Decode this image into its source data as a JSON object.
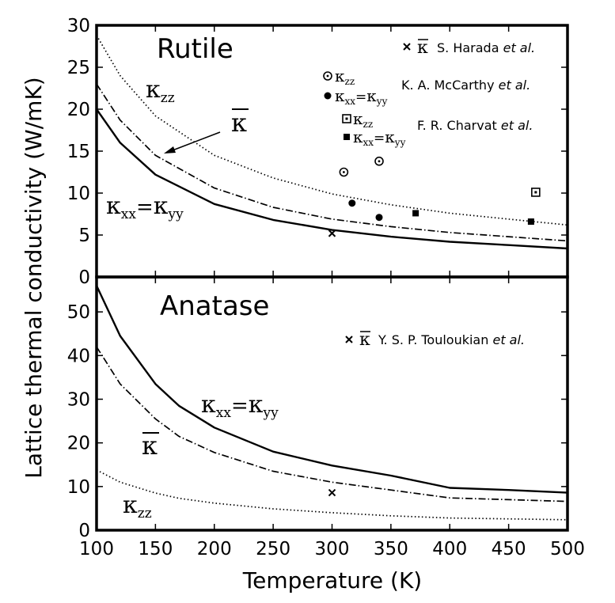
{
  "figure": {
    "xlabel": "Temperature (K)",
    "ylabel": "Lattice thermal conductivity (W/mK)"
  },
  "chart_data": [
    {
      "type": "line",
      "title": "Rutile",
      "xlim": [
        100,
        500
      ],
      "ylim": [
        0,
        30
      ],
      "xticks": [
        100,
        150,
        200,
        250,
        300,
        350,
        400,
        450,
        500
      ],
      "yticks": [
        0,
        5,
        10,
        15,
        20,
        25,
        30
      ],
      "grid": false,
      "series": [
        {
          "id": "kxx",
          "style": "solid",
          "x": [
            100,
            120,
            150,
            200,
            250,
            300,
            350,
            400,
            450,
            500
          ],
          "y": [
            20.0,
            16.0,
            12.2,
            8.7,
            6.8,
            5.6,
            4.8,
            4.2,
            3.8,
            3.4
          ]
        },
        {
          "id": "kavg",
          "style": "dashdot",
          "x": [
            100,
            120,
            150,
            200,
            250,
            300,
            350,
            400,
            450,
            500
          ],
          "y": [
            23.0,
            18.7,
            14.5,
            10.6,
            8.3,
            6.9,
            6.0,
            5.3,
            4.8,
            4.3
          ]
        },
        {
          "id": "kzz",
          "style": "dotted",
          "x": [
            100,
            120,
            150,
            200,
            250,
            300,
            350,
            400,
            450,
            500
          ],
          "y": [
            28.8,
            24.0,
            19.2,
            14.5,
            11.8,
            9.9,
            8.6,
            7.6,
            6.9,
            6.2
          ]
        }
      ],
      "points": [
        {
          "marker": "x",
          "x": 300,
          "y": 5.2
        },
        {
          "marker": "circle-dot",
          "x": 310,
          "y": 12.5
        },
        {
          "marker": "circle-dot",
          "x": 340,
          "y": 13.8
        },
        {
          "marker": "filled-circle",
          "x": 317,
          "y": 8.8
        },
        {
          "marker": "filled-circle",
          "x": 340,
          "y": 7.1
        },
        {
          "marker": "filled-square",
          "x": 371,
          "y": 7.6
        },
        {
          "marker": "filled-square",
          "x": 469,
          "y": 6.6
        },
        {
          "marker": "square-dot",
          "x": 473,
          "y": 10.1
        }
      ],
      "curve_labels": {
        "kzz": {
          "symbol": "κ",
          "sub": "zz"
        },
        "kavg": {
          "symbol": "κ"
        },
        "kxx": {
          "a": "κ",
          "a_sub": "xx",
          "eq": "=",
          "b": "κ",
          "b_sub": "yy"
        }
      },
      "legend": {
        "harada": {
          "symbol": "κ",
          "text": "S. Harada ",
          "etal": "et al."
        },
        "mccarthy_zz": {
          "symbol": "κ",
          "sub": "zz"
        },
        "mccarthy_xx": {
          "a": "κ",
          "a_sub": "xx",
          "eq": "=",
          "b": "κ",
          "b_sub": "yy"
        },
        "mccarthy": {
          "text": "K. A. McCarthy ",
          "etal": "et al."
        },
        "charvat_zz": {
          "symbol": "κ",
          "sub": "zz"
        },
        "charvat_xx": {
          "a": "κ",
          "a_sub": "xx",
          "eq": "=",
          "b": "κ",
          "b_sub": "yy"
        },
        "charvat": {
          "text": "F. R. Charvat ",
          "etal": "et al."
        }
      }
    },
    {
      "type": "line",
      "title": "Anatase",
      "xlim": [
        100,
        500
      ],
      "ylim": [
        0,
        58
      ],
      "xticks": [
        100,
        150,
        200,
        250,
        300,
        350,
        400,
        450,
        500
      ],
      "yticks": [
        0,
        10,
        20,
        30,
        40,
        50
      ],
      "grid": false,
      "series": [
        {
          "id": "kxx",
          "style": "solid",
          "x": [
            100,
            120,
            150,
            170,
            200,
            250,
            300,
            350,
            400,
            450,
            500
          ],
          "y": [
            56.0,
            44.5,
            33.5,
            28.5,
            23.5,
            18.0,
            14.8,
            12.5,
            9.7,
            9.2,
            8.6
          ]
        },
        {
          "id": "kavg",
          "style": "dashdot",
          "x": [
            100,
            120,
            150,
            170,
            200,
            250,
            300,
            350,
            400,
            450,
            500
          ],
          "y": [
            42.0,
            33.5,
            25.5,
            21.5,
            17.8,
            13.5,
            11.0,
            9.2,
            7.4,
            7.0,
            6.6
          ]
        },
        {
          "id": "kzz",
          "style": "dotted",
          "x": [
            100,
            120,
            150,
            170,
            200,
            250,
            300,
            350,
            400,
            450,
            500
          ],
          "y": [
            13.8,
            11.0,
            8.5,
            7.3,
            6.2,
            4.9,
            4.0,
            3.3,
            2.8,
            2.6,
            2.4
          ]
        }
      ],
      "points": [
        {
          "marker": "x",
          "x": 300,
          "y": 8.6
        }
      ],
      "curve_labels": {
        "kxx": {
          "a": "κ",
          "a_sub": "xx",
          "eq": "=",
          "b": "κ",
          "b_sub": "yy"
        },
        "kavg": {
          "symbol": "κ"
        },
        "kzz": {
          "symbol": "κ",
          "sub": "zz"
        }
      },
      "legend": {
        "touloukian": {
          "symbol": "κ",
          "text": "Y. S. P. Touloukian ",
          "etal": "et al."
        }
      }
    }
  ]
}
